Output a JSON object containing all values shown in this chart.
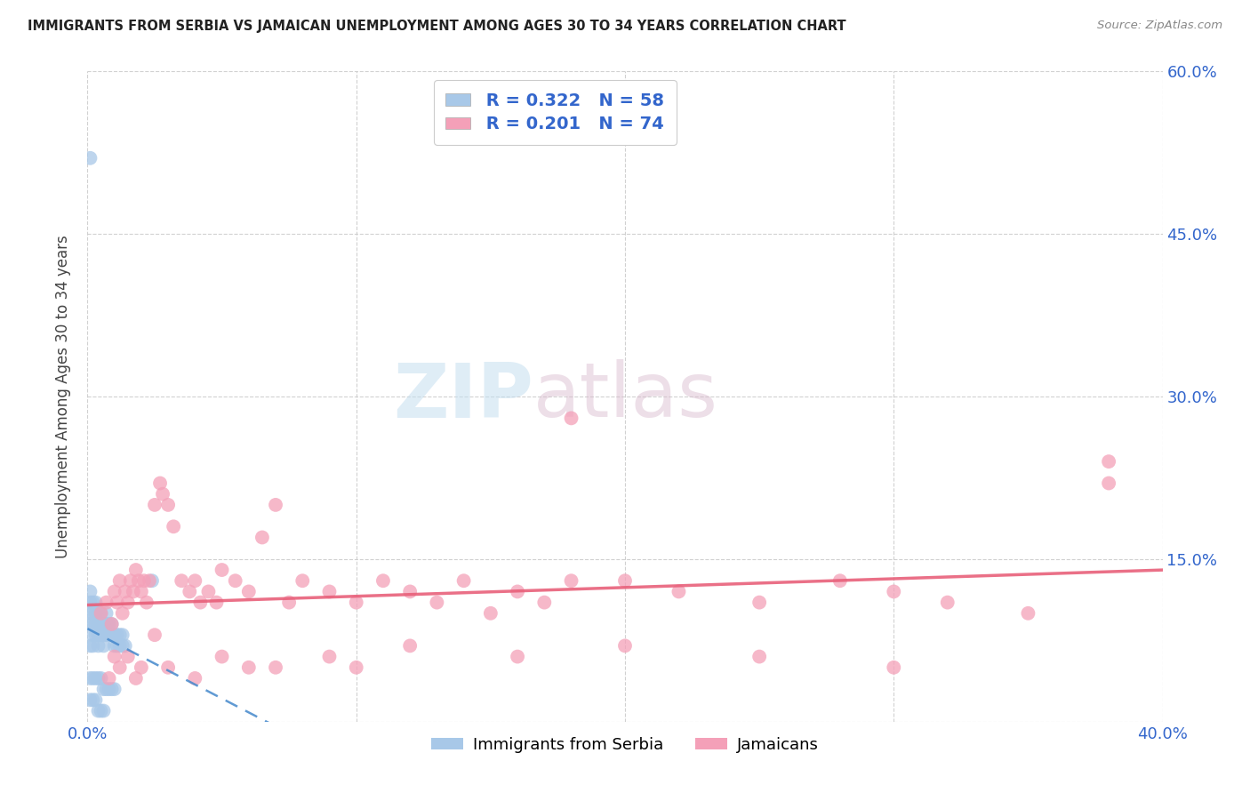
{
  "title": "IMMIGRANTS FROM SERBIA VS JAMAICAN UNEMPLOYMENT AMONG AGES 30 TO 34 YEARS CORRELATION CHART",
  "source": "Source: ZipAtlas.com",
  "ylabel": "Unemployment Among Ages 30 to 34 years",
  "serbia_R": 0.322,
  "serbia_N": 58,
  "jamaican_R": 0.201,
  "jamaican_N": 74,
  "serbia_color": "#a8c8e8",
  "jamaican_color": "#f4a0b8",
  "serbia_trend_color": "#4488cc",
  "jamaican_trend_color": "#e8607a",
  "watermark_zip_color": "#c5dff0",
  "watermark_atlas_color": "#d0b8c8",
  "xlim": [
    0.0,
    0.4
  ],
  "ylim": [
    0.0,
    0.6
  ],
  "x_ticks": [
    0.0,
    0.1,
    0.2,
    0.3,
    0.4
  ],
  "x_tick_labels": [
    "0.0%",
    "",
    "",
    "",
    "40.0%"
  ],
  "y_ticks": [
    0.0,
    0.15,
    0.3,
    0.45,
    0.6
  ],
  "y_tick_labels_right": [
    "",
    "15.0%",
    "30.0%",
    "45.0%",
    "60.0%"
  ],
  "serbia_x": [
    0.001,
    0.001,
    0.001,
    0.001,
    0.001,
    0.002,
    0.002,
    0.002,
    0.002,
    0.002,
    0.003,
    0.003,
    0.003,
    0.003,
    0.004,
    0.004,
    0.004,
    0.004,
    0.005,
    0.005,
    0.005,
    0.006,
    0.006,
    0.006,
    0.007,
    0.007,
    0.007,
    0.008,
    0.008,
    0.009,
    0.009,
    0.01,
    0.01,
    0.011,
    0.011,
    0.012,
    0.012,
    0.013,
    0.013,
    0.014,
    0.001,
    0.002,
    0.003,
    0.004,
    0.005,
    0.006,
    0.007,
    0.008,
    0.009,
    0.01,
    0.001,
    0.002,
    0.003,
    0.004,
    0.005,
    0.006,
    0.024,
    0.001
  ],
  "serbia_y": [
    0.07,
    0.09,
    0.1,
    0.11,
    0.12,
    0.07,
    0.08,
    0.09,
    0.1,
    0.11,
    0.08,
    0.09,
    0.1,
    0.11,
    0.07,
    0.08,
    0.09,
    0.1,
    0.08,
    0.09,
    0.1,
    0.07,
    0.08,
    0.09,
    0.08,
    0.09,
    0.1,
    0.08,
    0.09,
    0.08,
    0.09,
    0.07,
    0.08,
    0.07,
    0.08,
    0.07,
    0.08,
    0.07,
    0.08,
    0.07,
    0.04,
    0.04,
    0.04,
    0.04,
    0.04,
    0.03,
    0.03,
    0.03,
    0.03,
    0.03,
    0.02,
    0.02,
    0.02,
    0.01,
    0.01,
    0.01,
    0.13,
    0.52
  ],
  "jamaican_x": [
    0.005,
    0.007,
    0.009,
    0.01,
    0.011,
    0.012,
    0.013,
    0.014,
    0.015,
    0.016,
    0.017,
    0.018,
    0.019,
    0.02,
    0.021,
    0.022,
    0.023,
    0.025,
    0.027,
    0.028,
    0.03,
    0.032,
    0.035,
    0.038,
    0.04,
    0.042,
    0.045,
    0.048,
    0.05,
    0.055,
    0.06,
    0.065,
    0.07,
    0.075,
    0.08,
    0.09,
    0.1,
    0.11,
    0.12,
    0.13,
    0.14,
    0.15,
    0.16,
    0.17,
    0.18,
    0.2,
    0.22,
    0.25,
    0.28,
    0.3,
    0.32,
    0.35,
    0.38,
    0.01,
    0.015,
    0.02,
    0.03,
    0.05,
    0.07,
    0.09,
    0.12,
    0.16,
    0.2,
    0.25,
    0.3,
    0.38,
    0.008,
    0.012,
    0.018,
    0.025,
    0.04,
    0.06,
    0.1,
    0.18
  ],
  "jamaican_y": [
    0.1,
    0.11,
    0.09,
    0.12,
    0.11,
    0.13,
    0.1,
    0.12,
    0.11,
    0.13,
    0.12,
    0.14,
    0.13,
    0.12,
    0.13,
    0.11,
    0.13,
    0.2,
    0.22,
    0.21,
    0.2,
    0.18,
    0.13,
    0.12,
    0.13,
    0.11,
    0.12,
    0.11,
    0.14,
    0.13,
    0.12,
    0.17,
    0.2,
    0.11,
    0.13,
    0.12,
    0.11,
    0.13,
    0.12,
    0.11,
    0.13,
    0.1,
    0.12,
    0.11,
    0.13,
    0.13,
    0.12,
    0.11,
    0.13,
    0.12,
    0.11,
    0.1,
    0.22,
    0.06,
    0.06,
    0.05,
    0.05,
    0.06,
    0.05,
    0.06,
    0.07,
    0.06,
    0.07,
    0.06,
    0.05,
    0.24,
    0.04,
    0.05,
    0.04,
    0.08,
    0.04,
    0.05,
    0.05,
    0.28
  ]
}
